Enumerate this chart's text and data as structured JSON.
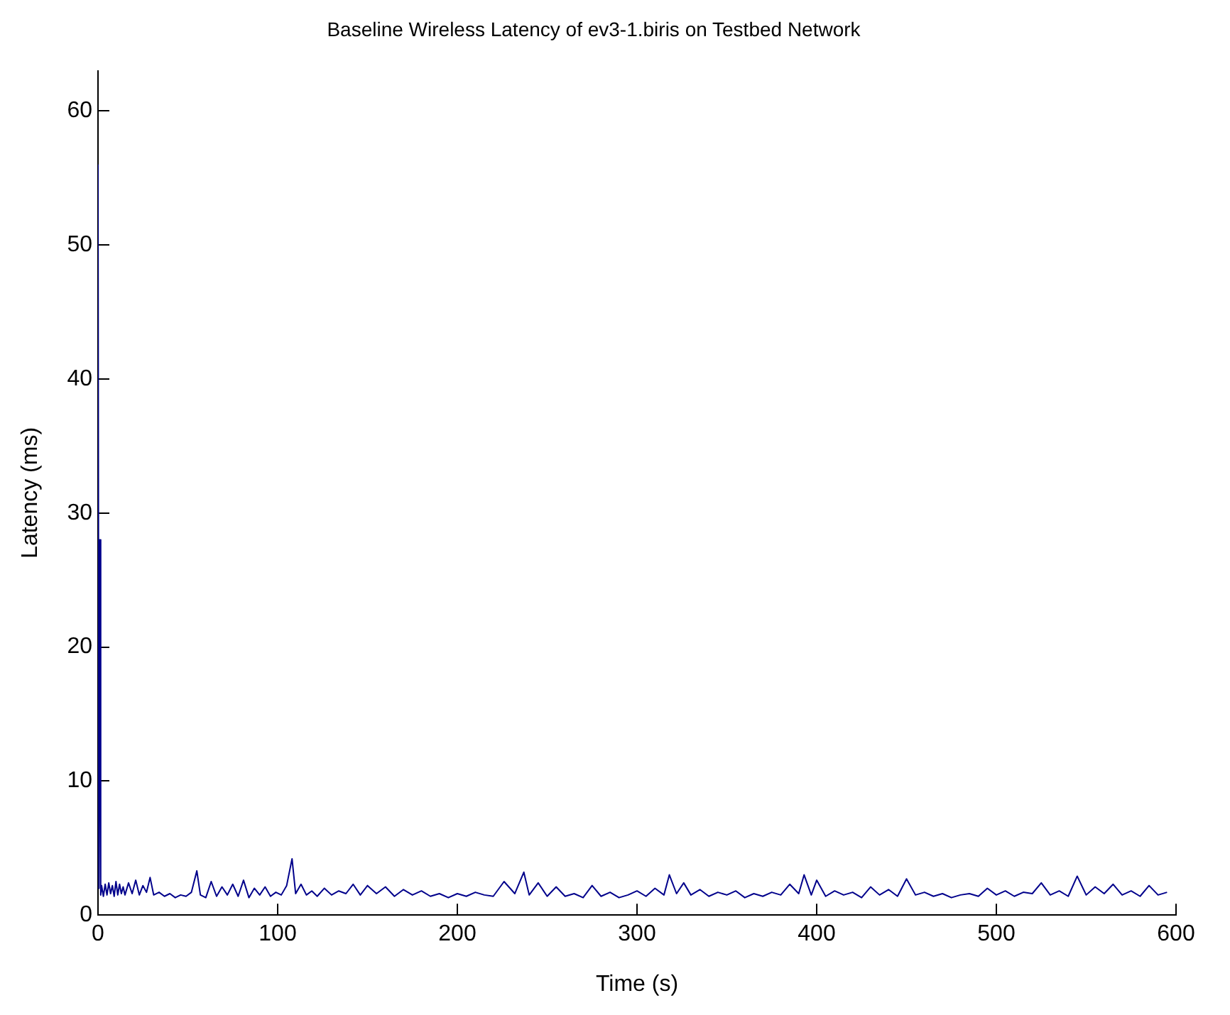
{
  "chart_data": {
    "type": "line",
    "title": "Baseline Wireless Latency of ev3-1.biris on Testbed Network",
    "xlabel": "Time (s)",
    "ylabel": "Latency (ms)",
    "xlim": [
      0,
      600
    ],
    "xticks": [
      0,
      100,
      200,
      300,
      400,
      500,
      600
    ],
    "ylim": [
      0,
      63
    ],
    "yticks": [
      0,
      10,
      20,
      30,
      40,
      50,
      60
    ],
    "grid": false,
    "legend": false,
    "marker": "none",
    "line_style": "solid",
    "series": [
      {
        "color": "#00008b",
        "x": [
          0,
          0.5,
          1,
          1.5,
          2,
          3,
          4,
          5,
          6,
          7,
          8,
          9,
          10,
          11,
          12,
          13,
          14,
          15,
          17,
          19,
          21,
          23,
          25,
          27,
          29,
          31,
          34,
          37,
          40,
          43,
          46,
          49,
          52,
          55,
          57,
          60,
          63,
          66,
          69,
          72,
          75,
          78,
          81,
          84,
          87,
          90,
          93,
          96,
          99,
          102,
          105,
          108,
          110,
          113,
          116,
          119,
          122,
          126,
          130,
          134,
          138,
          142,
          146,
          150,
          155,
          160,
          165,
          170,
          175,
          180,
          185,
          190,
          195,
          200,
          205,
          210,
          215,
          220,
          226,
          232,
          237,
          240,
          245,
          250,
          255,
          260,
          265,
          270,
          275,
          280,
          285,
          290,
          295,
          300,
          305,
          310,
          315,
          318,
          322,
          326,
          330,
          335,
          340,
          345,
          350,
          355,
          360,
          365,
          370,
          375,
          380,
          385,
          390,
          393,
          397,
          400,
          405,
          410,
          415,
          420,
          425,
          430,
          435,
          440,
          445,
          450,
          455,
          460,
          465,
          470,
          475,
          480,
          485,
          490,
          495,
          500,
          505,
          510,
          515,
          520,
          525,
          530,
          535,
          540,
          545,
          550,
          555,
          560,
          565,
          570,
          575,
          580,
          585,
          590,
          595
        ],
        "values": [
          56,
          2,
          28,
          1.5,
          2.2,
          1.4,
          2.3,
          1.5,
          2.4,
          1.6,
          2.2,
          1.4,
          2.5,
          1.5,
          2.3,
          1.6,
          2.1,
          1.5,
          2.4,
          1.6,
          2.6,
          1.5,
          2.2,
          1.7,
          2.8,
          1.5,
          1.7,
          1.4,
          1.6,
          1.3,
          1.5,
          1.4,
          1.7,
          3.3,
          1.5,
          1.3,
          2.5,
          1.4,
          2.1,
          1.5,
          2.3,
          1.4,
          2.6,
          1.3,
          2,
          1.5,
          2.1,
          1.4,
          1.7,
          1.5,
          2.2,
          4.2,
          1.6,
          2.3,
          1.5,
          1.8,
          1.4,
          2,
          1.5,
          1.8,
          1.6,
          2.3,
          1.5,
          2.2,
          1.6,
          2.1,
          1.4,
          1.9,
          1.5,
          1.8,
          1.4,
          1.6,
          1.3,
          1.6,
          1.4,
          1.7,
          1.5,
          1.4,
          2.5,
          1.6,
          3.2,
          1.5,
          2.4,
          1.4,
          2.1,
          1.4,
          1.6,
          1.3,
          2.2,
          1.4,
          1.7,
          1.3,
          1.5,
          1.8,
          1.4,
          2,
          1.5,
          3,
          1.6,
          2.4,
          1.5,
          1.9,
          1.4,
          1.7,
          1.5,
          1.8,
          1.3,
          1.6,
          1.4,
          1.7,
          1.5,
          2.3,
          1.6,
          3,
          1.5,
          2.6,
          1.4,
          1.8,
          1.5,
          1.7,
          1.3,
          2.1,
          1.5,
          1.9,
          1.4,
          2.7,
          1.5,
          1.7,
          1.4,
          1.6,
          1.3,
          1.5,
          1.6,
          1.4,
          2,
          1.5,
          1.8,
          1.4,
          1.7,
          1.6,
          2.4,
          1.5,
          1.8,
          1.4,
          2.9,
          1.5,
          2.1,
          1.6,
          2.3,
          1.5,
          1.8,
          1.4,
          2.2,
          1.5,
          1.7
        ]
      }
    ]
  }
}
